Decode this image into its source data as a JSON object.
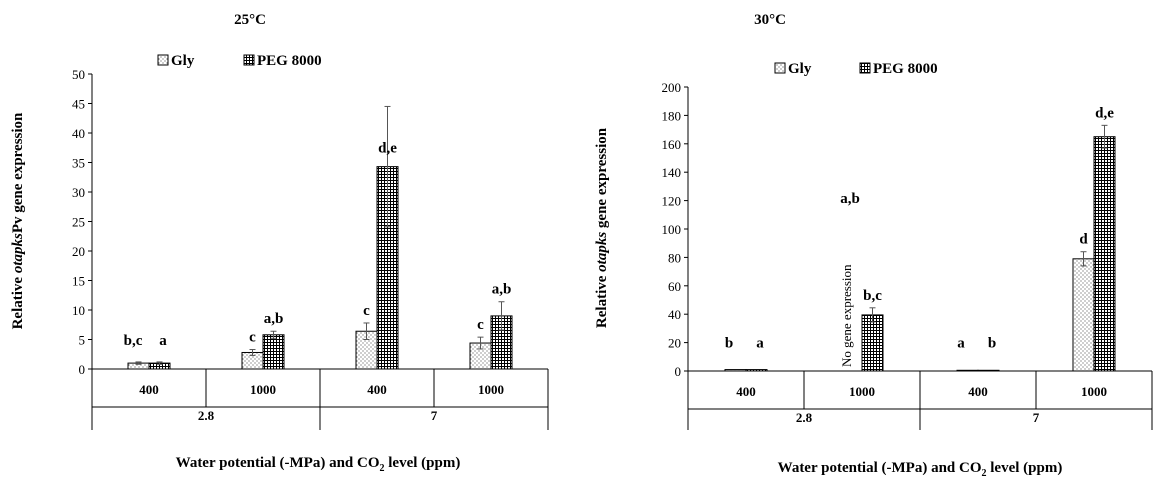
{
  "chart_data": [
    {
      "type": "bar",
      "title": "25°C",
      "ylabel_parts": [
        "Relative ",
        "otapks",
        "Pv gene expression"
      ],
      "xlabel": "Water potential (-MPa) and CO2 level (ppm)",
      "xlabel_parts": [
        "Water potential (-MPa) and CO",
        "2",
        " level (ppm)"
      ],
      "ylim": [
        0,
        50
      ],
      "ytick_step": 5,
      "categories": [
        "400",
        "1000",
        "400",
        "1000"
      ],
      "groups": [
        {
          "label": "2.8",
          "span": [
            0,
            1
          ]
        },
        {
          "label": "7",
          "span": [
            2,
            3
          ]
        }
      ],
      "legend": [
        "Gly",
        "PEG 8000"
      ],
      "series": [
        {
          "name": "Gly",
          "values": [
            1.0,
            2.8,
            6.4,
            4.4
          ],
          "errors": [
            0.2,
            0.5,
            1.4,
            1.0
          ],
          "letters": [
            "b,c",
            "c",
            "c",
            "c"
          ]
        },
        {
          "name": "PEG 8000",
          "values": [
            1.0,
            5.8,
            34.3,
            9.0
          ],
          "errors": [
            0.2,
            0.6,
            10.2,
            2.4
          ],
          "letters": [
            "a",
            "a,b",
            "d,e",
            "a,b"
          ]
        }
      ],
      "annotations": []
    },
    {
      "type": "bar",
      "title": "30°C",
      "ylabel_parts": [
        "Relative ",
        "otapks",
        " gene expression"
      ],
      "xlabel": "Water potential (-MPa) and CO2 level (ppm)",
      "xlabel_parts": [
        "Water potential (-MPa) and CO",
        "2",
        " level (ppm)"
      ],
      "ylim": [
        0,
        200
      ],
      "ytick_step": 20,
      "categories": [
        "400",
        "1000",
        "400",
        "1000"
      ],
      "groups": [
        {
          "label": "2.8",
          "span": [
            0,
            1
          ]
        },
        {
          "label": "7",
          "span": [
            2,
            3
          ]
        }
      ],
      "legend": [
        "Gly",
        "PEG 8000"
      ],
      "series": [
        {
          "name": "Gly",
          "values": [
            1.0,
            0,
            0.5,
            79
          ],
          "errors": [
            0,
            0,
            0,
            5
          ],
          "letters": [
            "b",
            "a,b",
            "a",
            "d"
          ]
        },
        {
          "name": "PEG 8000",
          "values": [
            1.0,
            39.5,
            0.5,
            165
          ],
          "errors": [
            0,
            5,
            0,
            8
          ],
          "letters": [
            "a",
            "b,c",
            "b",
            "d,e"
          ]
        }
      ],
      "annotations": [
        {
          "text": "No gene expression",
          "series": 0,
          "category": 1
        }
      ]
    }
  ]
}
